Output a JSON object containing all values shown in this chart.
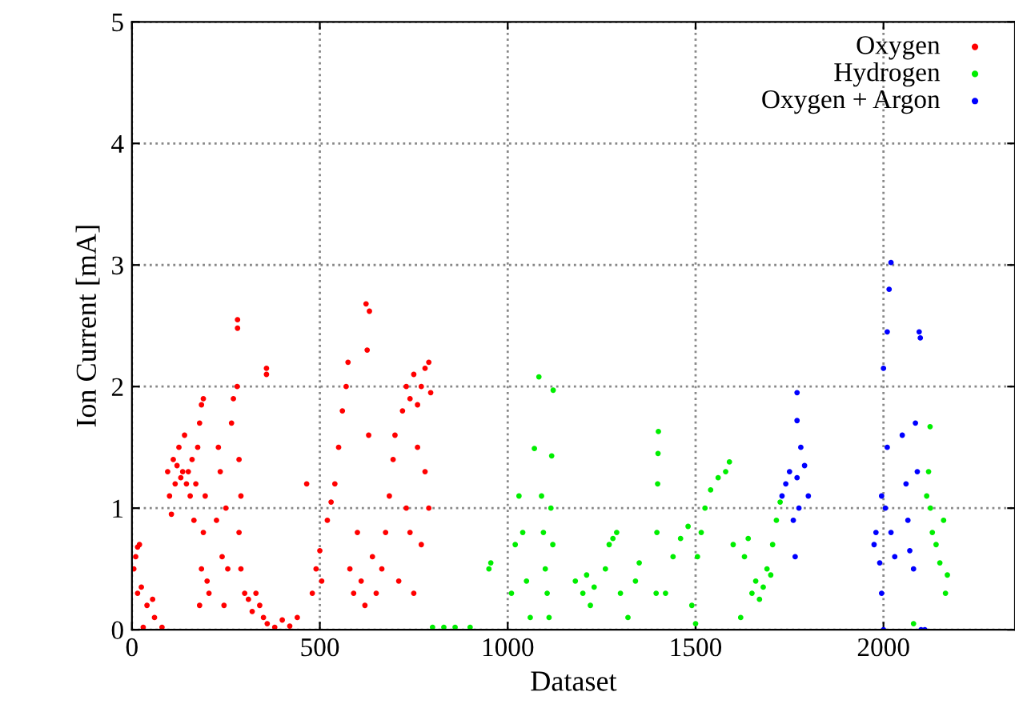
{
  "chart_data": {
    "type": "scatter",
    "xlabel": "Dataset",
    "ylabel": "Ion Current [mA]",
    "xlim": [
      0,
      2350
    ],
    "ylim": [
      0,
      5
    ],
    "xticks": [
      0,
      500,
      1000,
      1500,
      2000
    ],
    "yticks": [
      0,
      1,
      2,
      3,
      4,
      5
    ],
    "grid": true,
    "legend": "top right",
    "marker": "circle",
    "series": [
      {
        "name": "Oxygen",
        "color": "#ff0000",
        "x": [
          5,
          10,
          15,
          20,
          15,
          25,
          40,
          55,
          60,
          30,
          80,
          95,
          100,
          105,
          110,
          115,
          120,
          125,
          130,
          135,
          140,
          145,
          150,
          155,
          160,
          165,
          170,
          175,
          180,
          185,
          190,
          180,
          185,
          190,
          195,
          200,
          205,
          225,
          230,
          235,
          240,
          245,
          250,
          255,
          265,
          270,
          281,
          281,
          280,
          285,
          290,
          285,
          290,
          300,
          310,
          320,
          330,
          340,
          350,
          358,
          358,
          360,
          380,
          400,
          420,
          440,
          465,
          480,
          490,
          500,
          505,
          520,
          530,
          540,
          550,
          560,
          570,
          575,
          580,
          590,
          600,
          610,
          620,
          623,
          626,
          630,
          632,
          640,
          650,
          665,
          675,
          685,
          695,
          700,
          710,
          720,
          730,
          740,
          750,
          760,
          770,
          780,
          790,
          795,
          760,
          780,
          740,
          730,
          750,
          770,
          790
        ],
        "values": [
          0.5,
          0.6,
          0.68,
          0.7,
          0.3,
          0.35,
          0.2,
          0.25,
          0.1,
          0.02,
          0.02,
          1.3,
          1.1,
          0.95,
          1.4,
          1.2,
          1.35,
          1.5,
          1.25,
          1.3,
          1.6,
          1.2,
          1.3,
          1.1,
          1.4,
          0.9,
          1.2,
          1.5,
          1.7,
          1.85,
          1.9,
          0.2,
          0.5,
          0.8,
          1.1,
          0.4,
          0.3,
          0.9,
          1.5,
          1.3,
          0.6,
          0.2,
          1.0,
          0.5,
          1.7,
          1.9,
          2.55,
          2.48,
          2.0,
          1.4,
          1.1,
          0.8,
          0.5,
          0.3,
          0.25,
          0.15,
          0.3,
          0.2,
          0.1,
          2.15,
          2.1,
          0.05,
          0.02,
          0.08,
          0.03,
          0.1,
          1.2,
          0.3,
          0.5,
          0.65,
          0.4,
          0.9,
          1.05,
          1.2,
          1.5,
          1.8,
          2.0,
          2.2,
          0.5,
          0.3,
          0.8,
          0.4,
          0.2,
          2.68,
          2.3,
          1.6,
          2.62,
          0.6,
          0.3,
          0.5,
          0.8,
          1.1,
          1.4,
          1.6,
          0.4,
          1.8,
          2.0,
          1.9,
          2.1,
          1.85,
          2.0,
          2.15,
          2.2,
          1.95,
          1.5,
          1.3,
          0.8,
          1.0,
          0.3,
          0.7,
          1.0
        ]
      },
      {
        "name": "Hydrogen",
        "color": "#00ee00",
        "x": [
          800,
          830,
          860,
          900,
          950,
          955,
          1010,
          1020,
          1030,
          1040,
          1050,
          1060,
          1071,
          1083,
          1117,
          1121,
          1090,
          1095,
          1100,
          1105,
          1110,
          1115,
          1120,
          1180,
          1200,
          1210,
          1220,
          1230,
          1260,
          1270,
          1280,
          1290,
          1300,
          1320,
          1340,
          1350,
          1395,
          1397,
          1399,
          1400,
          1401,
          1420,
          1440,
          1460,
          1480,
          1490,
          1500,
          1505,
          1515,
          1525,
          1540,
          1560,
          1580,
          1590,
          1600,
          1620,
          1630,
          1640,
          1650,
          1660,
          1670,
          1680,
          1690,
          1700,
          1705,
          1715,
          1725,
          2080,
          2115,
          2120,
          2124,
          2125,
          2130,
          2140,
          2150,
          2160,
          2165,
          2170
        ],
        "values": [
          0.02,
          0.02,
          0.02,
          0.02,
          0.5,
          0.55,
          0.3,
          0.7,
          1.1,
          0.8,
          0.4,
          0.1,
          1.49,
          2.08,
          1.43,
          1.97,
          1.1,
          0.8,
          0.5,
          0.3,
          0.1,
          1.0,
          0.7,
          0.4,
          0.3,
          0.45,
          0.2,
          0.35,
          0.5,
          0.7,
          0.75,
          0.8,
          0.3,
          0.1,
          0.4,
          0.55,
          0.3,
          0.8,
          1.2,
          1.45,
          1.63,
          0.3,
          0.6,
          0.75,
          0.85,
          0.2,
          0.05,
          0.6,
          0.8,
          1.0,
          1.15,
          1.25,
          1.3,
          1.38,
          0.7,
          0.1,
          0.6,
          0.75,
          0.3,
          0.4,
          0.25,
          0.35,
          0.5,
          0.45,
          0.7,
          0.9,
          1.05,
          0.05,
          1.1,
          1.3,
          1.67,
          1.0,
          0.8,
          0.7,
          0.55,
          0.9,
          0.3,
          0.45
        ]
      },
      {
        "name": "Oxygen + Argon",
        "color": "#0000ff",
        "x": [
          1730,
          1740,
          1750,
          1760,
          1770,
          1780,
          1790,
          1800,
          1770,
          1770,
          1765,
          1775,
          1975,
          1980,
          1990,
          1995,
          2000,
          1995,
          2000,
          2010,
          2015,
          2020,
          2010,
          2005,
          2020,
          2030,
          2050,
          2060,
          2065,
          2070,
          2080,
          2085,
          2090,
          2095,
          2098,
          2100,
          2110
        ],
        "values": [
          1.1,
          1.2,
          1.3,
          0.9,
          1.25,
          1.5,
          1.35,
          1.1,
          1.72,
          1.95,
          0.6,
          1.0,
          0.7,
          0.8,
          0.55,
          0.3,
          0.0,
          1.1,
          2.15,
          2.45,
          2.8,
          3.02,
          1.5,
          1.0,
          0.8,
          0.6,
          1.6,
          1.2,
          0.9,
          0.65,
          0.5,
          1.7,
          1.3,
          2.45,
          2.4,
          0.0,
          0.0
        ]
      }
    ]
  }
}
